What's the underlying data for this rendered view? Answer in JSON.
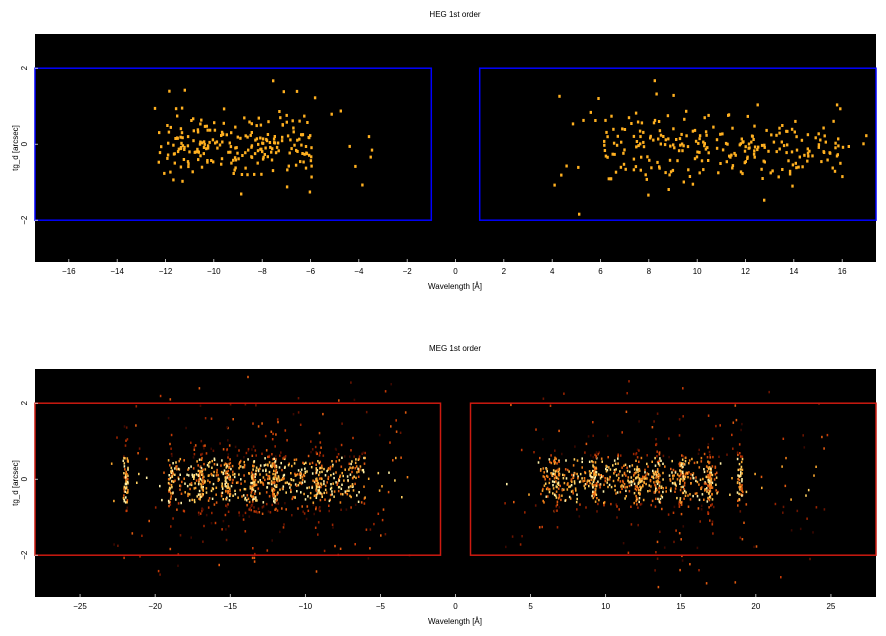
{
  "chart_data": [
    {
      "type": "heatmap",
      "title": "HEG 1st order",
      "xlabel": "Wavelength [Å]",
      "ylabel": "tg_d [arcsec]",
      "xlim": [
        -17.4,
        17.4
      ],
      "ylim": [
        -3.1,
        2.9
      ],
      "xticks": [
        -16,
        -14,
        -12,
        -10,
        -8,
        -6,
        -4,
        -2,
        0,
        2,
        4,
        6,
        8,
        10,
        12,
        14,
        16
      ],
      "xtick_labels": [
        "−16",
        "−14",
        "−12",
        "−10",
        "−8",
        "−6",
        "−4",
        "−2",
        "0",
        "2",
        "4",
        "6",
        "8",
        "10",
        "12",
        "14",
        "16"
      ],
      "yticks": [
        -2,
        0,
        2
      ],
      "ytick_labels": [
        "−2",
        "0",
        "2"
      ],
      "background": "#000000",
      "region_color": "#0000ff",
      "regions": [
        {
          "x": [
            -17.4,
            -1.0
          ],
          "y": [
            -2.0,
            2.0
          ]
        },
        {
          "x": [
            1.0,
            17.4
          ],
          "y": [
            -2.0,
            2.0
          ]
        }
      ],
      "event_color": "#ffb020",
      "event_clusters": [
        {
          "x": [
            -12.0,
            -6.0
          ],
          "y": [
            -1.0,
            1.0
          ],
          "count": 190
        },
        {
          "x": [
            -12.5,
            -3.5
          ],
          "y": [
            -2.0,
            2.0
          ],
          "count": 50
        },
        {
          "x": [
            6.0,
            16.0
          ],
          "y": [
            -1.0,
            1.0
          ],
          "count": 210
        },
        {
          "x": [
            4.0,
            17.0
          ],
          "y": [
            -2.0,
            2.0
          ],
          "count": 60
        }
      ]
    },
    {
      "type": "heatmap",
      "title": "MEG 1st order",
      "xlabel": "Wavelength [Å]",
      "ylabel": "tg_d [arcsec]",
      "xlim": [
        -28.0,
        28.0
      ],
      "ylim": [
        -3.1,
        2.9
      ],
      "xticks": [
        -25,
        -20,
        -15,
        -10,
        -5,
        0,
        5,
        10,
        15,
        20,
        25
      ],
      "xtick_labels": [
        "−25",
        "−20",
        "−15",
        "−10",
        "−5",
        "0",
        "5",
        "10",
        "15",
        "20",
        "25"
      ],
      "yticks": [
        -2,
        0,
        2
      ],
      "ytick_labels": [
        "−2",
        "0",
        "2"
      ],
      "background": "#000000",
      "region_color": "#cc1a10",
      "regions": [
        {
          "x": [
            -28.0,
            -1.0
          ],
          "y": [
            -2.0,
            2.0
          ]
        },
        {
          "x": [
            1.0,
            28.0
          ],
          "y": [
            -2.0,
            2.0
          ]
        }
      ],
      "emission_lines": [
        -22.0,
        -19.0,
        -17.0,
        -15.2,
        -13.5,
        -12.1,
        -9.2,
        6.7,
        9.2,
        12.1,
        13.4,
        15.0,
        16.9,
        18.9
      ],
      "event_clusters": [
        {
          "x": [
            -19.0,
            -6.0
          ],
          "y": [
            -1.0,
            1.0
          ],
          "count": 900
        },
        {
          "x": [
            -23.0,
            -3.0
          ],
          "y": [
            -3.0,
            3.0
          ],
          "count": 260
        },
        {
          "x": [
            5.5,
            17.5
          ],
          "y": [
            -0.8,
            0.8
          ],
          "count": 700
        },
        {
          "x": [
            3.0,
            25.0
          ],
          "y": [
            -3.0,
            3.0
          ],
          "count": 200
        }
      ]
    }
  ]
}
